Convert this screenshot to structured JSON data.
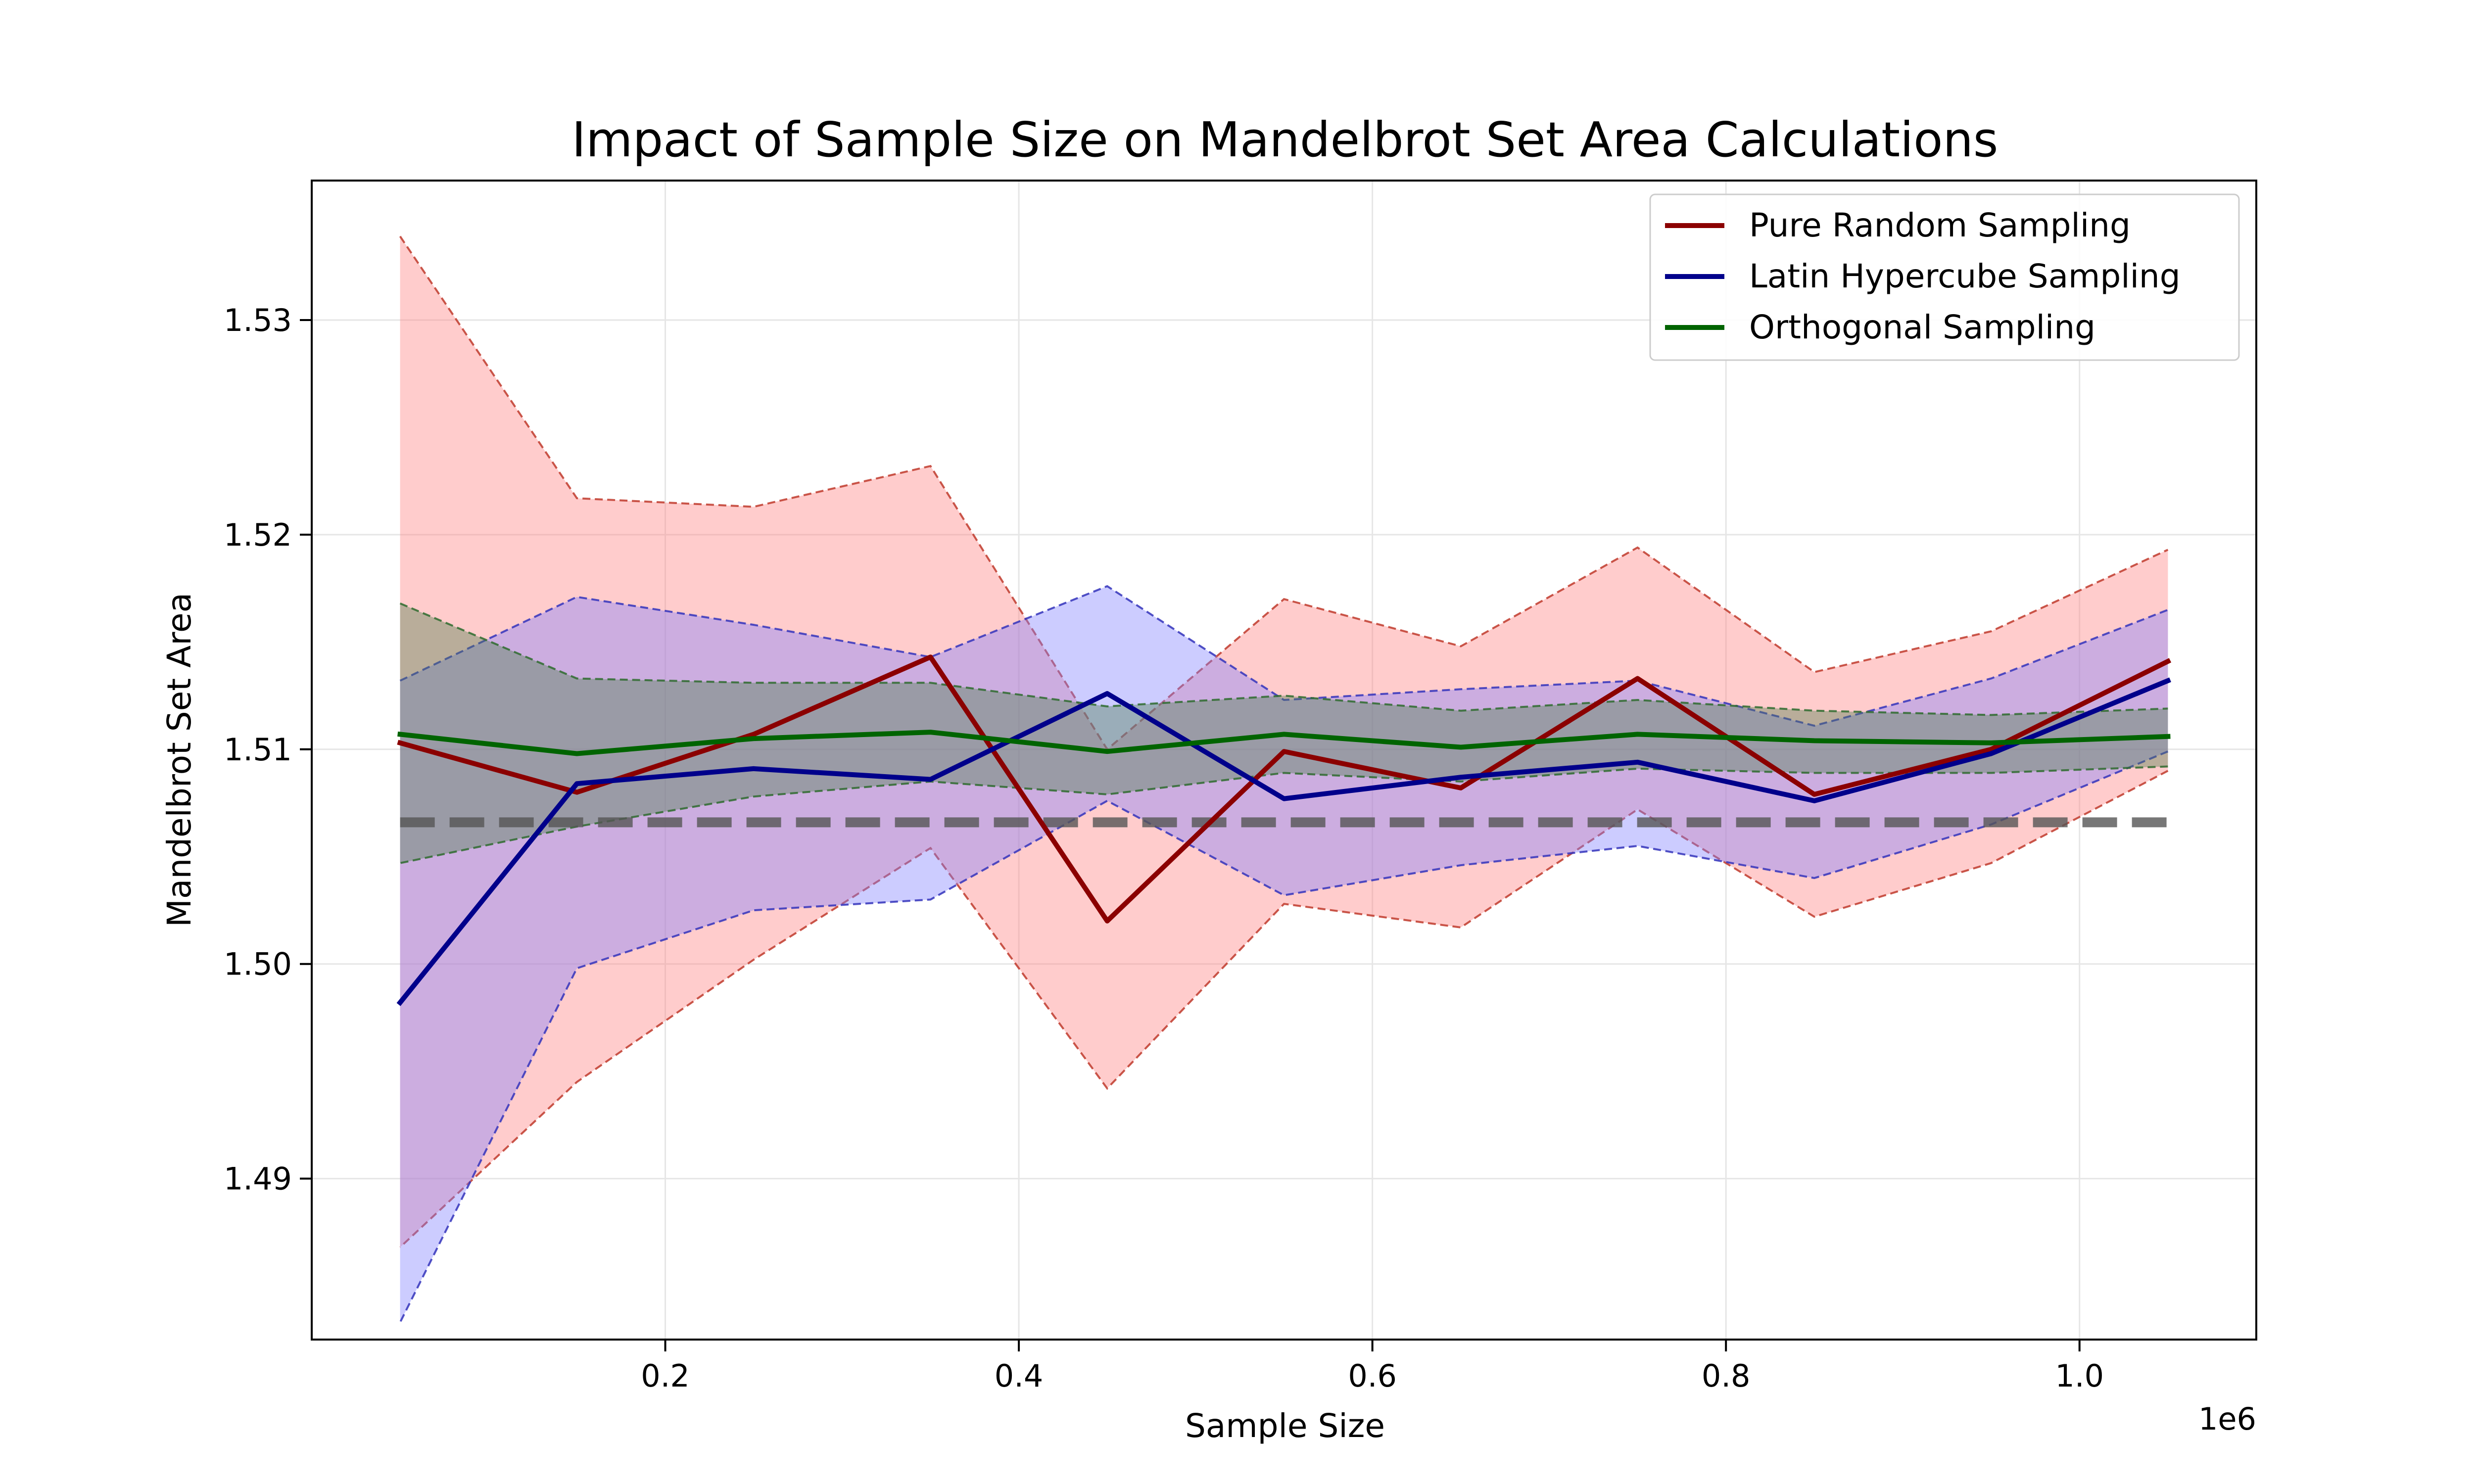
{
  "chart_data": {
    "type": "line",
    "title": "Impact of Sample Size on Mandelbrot Set Area Calculations",
    "xlabel": "Sample Size",
    "ylabel": "Mandelbrot Set Area",
    "x_offset_label": "1e6",
    "x": [
      50000,
      150000,
      250000,
      350000,
      450000,
      550000,
      650000,
      750000,
      850000,
      950000,
      1050000
    ],
    "xlim": [
      0,
      1100000
    ],
    "ylim": [
      1.4825,
      1.5365
    ],
    "x_ticks": [
      200000,
      400000,
      600000,
      800000,
      1000000
    ],
    "x_tick_labels": [
      "0.2",
      "0.4",
      "0.6",
      "0.8",
      "1.0"
    ],
    "y_ticks": [
      1.49,
      1.5,
      1.51,
      1.52,
      1.53
    ],
    "y_tick_labels": [
      "1.49",
      "1.50",
      "1.51",
      "1.52",
      "1.53"
    ],
    "grid": true,
    "legend_position": "top-right",
    "reference_line": {
      "y": 1.5066,
      "style": "dashed",
      "color": "#555555"
    },
    "series": [
      {
        "name": "Pure Random Sampling",
        "color": "#8b0000",
        "band_color": "#ff8080",
        "band_edge_color": "#c0392b",
        "values": [
          1.5103,
          1.508,
          1.5107,
          1.5143,
          1.502,
          1.5099,
          1.5082,
          1.5133,
          1.5079,
          1.51,
          1.5141
        ],
        "upper": [
          1.5339,
          1.5217,
          1.5213,
          1.5232,
          1.51,
          1.517,
          1.5148,
          1.5194,
          1.5136,
          1.5155,
          1.5193
        ],
        "lower": [
          1.4868,
          1.4945,
          1.5002,
          1.5054,
          1.4942,
          1.5028,
          1.5017,
          1.5072,
          1.5022,
          1.5047,
          1.509
        ]
      },
      {
        "name": "Latin Hypercube Sampling",
        "color": "#00008b",
        "band_color": "#8080ff",
        "band_edge_color": "#3333bb",
        "values": [
          1.4982,
          1.5084,
          1.5091,
          1.5086,
          1.5126,
          1.5077,
          1.5087,
          1.5094,
          1.5076,
          1.5098,
          1.5132
        ],
        "upper": [
          1.5132,
          1.5171,
          1.5158,
          1.5143,
          1.5176,
          1.5123,
          1.5128,
          1.5132,
          1.5111,
          1.5133,
          1.5165
        ],
        "lower": [
          1.4833,
          1.4998,
          1.5025,
          1.503,
          1.5076,
          1.5032,
          1.5046,
          1.5055,
          1.504,
          1.5065,
          1.5099
        ]
      },
      {
        "name": "Orthogonal Sampling",
        "color": "#006400",
        "band_color": "#4f7f4f",
        "band_edge_color": "#2e6b2e",
        "values": [
          1.5107,
          1.5098,
          1.5105,
          1.5108,
          1.5099,
          1.5107,
          1.5101,
          1.5107,
          1.5104,
          1.5103,
          1.5106
        ],
        "upper": [
          1.5168,
          1.5133,
          1.5131,
          1.5131,
          1.512,
          1.5125,
          1.5118,
          1.5123,
          1.5118,
          1.5116,
          1.5119
        ],
        "lower": [
          1.5047,
          1.5064,
          1.5078,
          1.5085,
          1.5079,
          1.5089,
          1.5085,
          1.5091,
          1.5089,
          1.5089,
          1.5092
        ]
      }
    ]
  }
}
